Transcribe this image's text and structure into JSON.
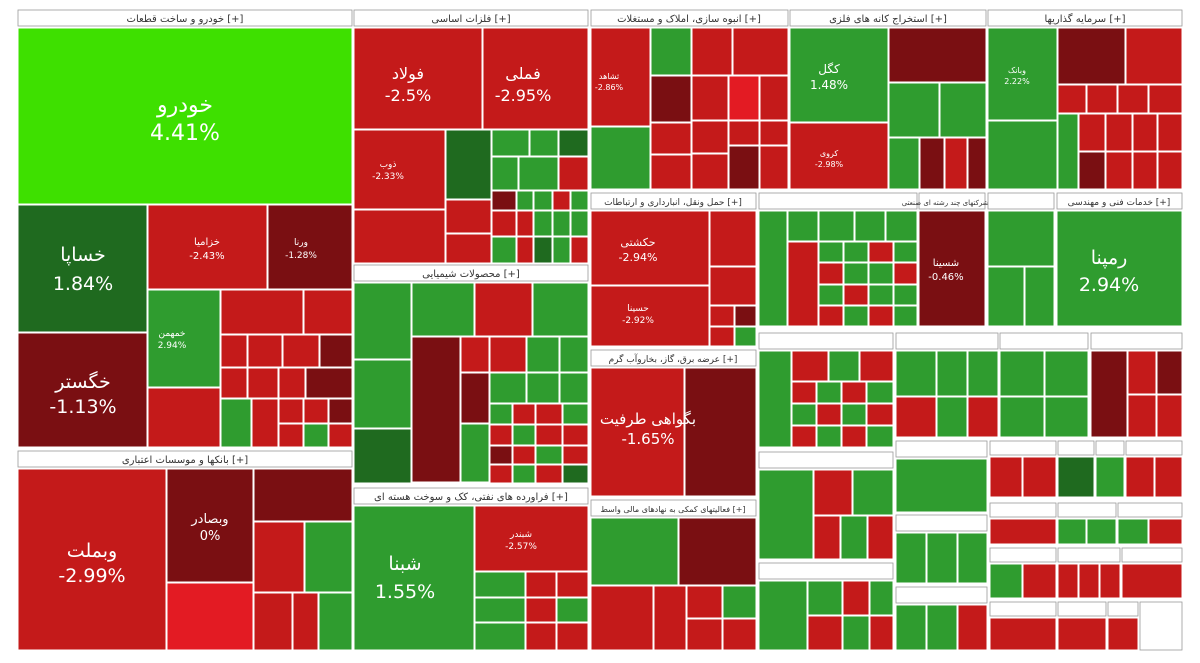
{
  "chart_data": {
    "type": "treemap",
    "colors": {
      "strong_green": "#3ee000",
      "green": "#2f9c2f",
      "dark_green": "#1f6a1f",
      "red": "#c41a1a",
      "dark_red": "#7a0f12",
      "bright_red": "#e31b23",
      "header_bg": "#ffffff",
      "header_text": "#333333"
    },
    "sectors": [
      {
        "name": "خودرو و ساخت قطعات [+]",
        "tiles": [
          {
            "name": "خودرو",
            "change": "4.41%"
          },
          {
            "name": "خساپا",
            "change": "1.84%"
          },
          {
            "name": "خگستر",
            "change": "-1.13%"
          },
          {
            "name": "خزامیا",
            "change": "-2.43%"
          },
          {
            "name": "ورنا",
            "change": "-1.28%"
          },
          {
            "name": "خمهمن",
            "change": "2.94%"
          }
        ]
      },
      {
        "name": "فلزات اساسی [+]",
        "tiles": [
          {
            "name": "فولاد",
            "change": "-2.5%"
          },
          {
            "name": "فملی",
            "change": "-2.95%"
          },
          {
            "name": "ذوب",
            "change": "-2.33%"
          }
        ]
      },
      {
        "name": "انبوه سازی، املاک و مستغلات [+]",
        "tiles": [
          {
            "name": "ثشاهد",
            "change": "-2.86%"
          }
        ]
      },
      {
        "name": "استخراج کانه های فلزی [+]",
        "tiles": [
          {
            "name": "کگل",
            "change": "1.48%"
          },
          {
            "name": "کروی",
            "change": "-2.98%"
          }
        ]
      },
      {
        "name": "سرمایه گذاریها [+]",
        "tiles": [
          {
            "name": "وبانک",
            "change": "2.22%"
          }
        ]
      },
      {
        "name": "حمل ونقل، انبارداری و ارتباطات [+]",
        "tiles": [
          {
            "name": "حکشتی",
            "change": "-2.94%"
          },
          {
            "name": "حسینا",
            "change": "-2.92%"
          }
        ]
      },
      {
        "name": "شرکتهای چند رشته ای صنعتی [+]",
        "tiles": [
          {
            "name": "شسینا",
            "change": "-0.46%"
          }
        ]
      },
      {
        "name": "خدمات فنی و مهندسی [+]",
        "tiles": [
          {
            "name": "رمپنا",
            "change": "2.94%"
          }
        ]
      },
      {
        "name": "محصولات شیمیایی [+]",
        "tiles": []
      },
      {
        "name": "عرضه برق، گاز، بخاروآب گرم [+]",
        "tiles": [
          {
            "name": "بگواهی طرفیت",
            "change": "-1.65%"
          }
        ]
      },
      {
        "name": "بانکها و موسسات اعتباری [+]",
        "tiles": [
          {
            "name": "وبملت",
            "change": "-2.99%"
          },
          {
            "name": "وبصادر",
            "change": "0%"
          }
        ]
      },
      {
        "name": "فراورده های نفتی، کک و سوخت هسته ای [+]",
        "tiles": [
          {
            "name": "شبنا",
            "change": "1.55%"
          },
          {
            "name": "شبندر",
            "change": "-2.57%"
          }
        ]
      },
      {
        "name": "فعالیتهای کمکی به نهادهای مالی واسط [+]",
        "tiles": []
      }
    ]
  },
  "labels": {
    "khodro": "خودرو",
    "khodro_pct": "4.41%",
    "khsapa": "خساپا",
    "khsapa_pct": "1.84%",
    "khgostar": "خگستر",
    "khgostar_pct": "-1.13%",
    "foolad": "فولاد",
    "foolad_pct": "-2.5%",
    "fameli": "فملی",
    "fameli_pct": "-2.95%",
    "kegol": "کگل",
    "kegol_pct": "1.48%",
    "hakashti": "حکشتی",
    "hakashti_pct": "-2.94%",
    "hasina": "حسینا",
    "hasina_pct": "-2.92%",
    "shasina": "شسینا",
    "shasina_pct": "-0.46%",
    "rampna": "رمپنا",
    "rampna_pct": "2.94%",
    "bgavahi": "بگواهی طرفیت",
    "bgavahi_pct": "-1.65%",
    "vbmellat": "وبملت",
    "vbmellat_pct": "-2.99%",
    "vbsader": "وبصادر",
    "vbsader_pct": "0%",
    "shabna": "شبنا",
    "shabna_pct": "1.55%",
    "shbandar": "شبندر",
    "shbandar_pct": "-2.57%",
    "khzamia": "خزامیا",
    "khzamia_pct": "-2.43%",
    "varna": "ورنا",
    "varna_pct": "-1.28%",
    "khmehmen": "خمهمن",
    "khmehmen_pct": "2.94%",
    "zob": "ذوب",
    "zob_pct": "-2.33%",
    "kravi": "کروی",
    "kravi_pct": "-2.98%",
    "vbank": "وبانک",
    "vbank_pct": "2.22%",
    "sashahed": "ثشاهد",
    "sashahed_pct": "-2.86%"
  }
}
